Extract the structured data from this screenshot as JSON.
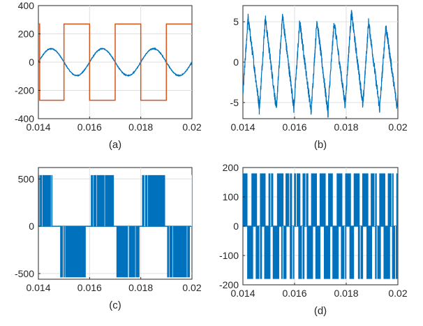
{
  "chart_data": [
    {
      "type": "line",
      "caption": "(a)",
      "x_ticks": [
        "0.014",
        "0.016",
        "0.018",
        "0.02"
      ],
      "y_ticks": [
        "400",
        "200",
        "0",
        "-200",
        "-400"
      ],
      "xlim": [
        0.014,
        0.02
      ],
      "ylim": [
        -400,
        400
      ],
      "grid": true,
      "series": [
        {
          "style": "sine",
          "color": "#0072BD",
          "amplitude": 95,
          "frequency_hz": 500,
          "phase_zero_crossing_rising": 0.014,
          "ripple": 6
        },
        {
          "style": "square",
          "color": "#D95319",
          "high": 270,
          "low": -270,
          "x": [
            0.014,
            0.01405,
            0.01405,
            0.015,
            0.015,
            0.016,
            0.016,
            0.017,
            0.017,
            0.018,
            0.018,
            0.019,
            0.019,
            0.02
          ],
          "y": [
            270,
            270,
            -270,
            -270,
            270,
            270,
            -270,
            -270,
            270,
            270,
            -270,
            -270,
            270,
            270
          ]
        }
      ]
    },
    {
      "type": "line",
      "caption": "(b)",
      "x_ticks": [
        "0.014",
        "0.016",
        "0.018",
        "0.02"
      ],
      "y_ticks": [
        "5",
        "0",
        "-5"
      ],
      "xlim": [
        0.014,
        0.02
      ],
      "ylim": [
        -7,
        7
      ],
      "grid": true,
      "series": [
        {
          "style": "triangle",
          "color": "#0072BD",
          "frequency_hz": 1500,
          "peaks": [
            5.5,
            5.5,
            5.8,
            5.0,
            5.2,
            5.0,
            6.2,
            5.0,
            4.5
          ],
          "troughs": [
            -5.5,
            -6.0,
            -5.5,
            -6.0,
            -6.5,
            -5.5,
            -5.0,
            -6.0,
            -5.5
          ],
          "noise": 0.6
        }
      ]
    },
    {
      "type": "line",
      "caption": "(c)",
      "x_ticks": [
        "0.014",
        "0.016",
        "0.018",
        "0.02"
      ],
      "y_ticks": [
        "500",
        "0",
        "-500"
      ],
      "xlim": [
        0.014,
        0.02
      ],
      "ylim": [
        -560,
        620
      ],
      "grid": true,
      "series": [
        {
          "style": "pwm-bands",
          "color": "#0072BD",
          "level": 540,
          "bands": [
            {
              "from": 0.014,
              "to": 0.01455,
              "sign": 1
            },
            {
              "from": 0.01485,
              "to": 0.01585,
              "sign": -1
            },
            {
              "from": 0.01605,
              "to": 0.01695,
              "sign": 1
            },
            {
              "from": 0.01705,
              "to": 0.01795,
              "sign": -1
            },
            {
              "from": 0.01805,
              "to": 0.01895,
              "sign": 1
            },
            {
              "from": 0.01903,
              "to": 0.01992,
              "sign": -1
            },
            {
              "from": 0.01998,
              "to": 0.02,
              "sign": 1
            }
          ]
        }
      ]
    },
    {
      "type": "line",
      "caption": "(d)",
      "x_ticks": [
        "0.014",
        "0.016",
        "0.018",
        "0.02"
      ],
      "y_ticks": [
        "200",
        "100",
        "0",
        "-100",
        "-200"
      ],
      "xlim": [
        0.014,
        0.02
      ],
      "ylim": [
        -200,
        200
      ],
      "grid": true,
      "series": [
        {
          "style": "pwm-bursts",
          "color": "#0072BD",
          "level": 180,
          "period": 0.00033,
          "high_fraction": 0.7
        }
      ]
    }
  ]
}
